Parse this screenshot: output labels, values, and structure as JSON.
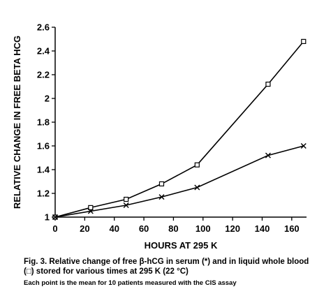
{
  "chart_data": {
    "type": "line",
    "title": "",
    "xlabel": "HOURS AT 295 K",
    "ylabel": "RELATIVE CHANGE IN FREE BETA HCG",
    "xlim": [
      0,
      170
    ],
    "ylim": [
      1,
      2.6
    ],
    "xticks": [
      "0",
      "20",
      "40",
      "60",
      "80",
      "100",
      "120",
      "140",
      "160"
    ],
    "yticks": [
      "1",
      "1.2",
      "1.4",
      "1.6",
      "1.8",
      "2",
      "2.2",
      "2.4",
      "2.6"
    ],
    "grid": false,
    "legend": "none",
    "series": [
      {
        "marker": "square",
        "x": [
          0,
          24,
          48,
          72,
          96,
          144,
          168
        ],
        "y": [
          1.0,
          1.08,
          1.15,
          1.28,
          1.44,
          2.12,
          2.48
        ]
      },
      {
        "marker": "cross",
        "x": [
          0,
          24,
          48,
          72,
          96,
          144,
          168
        ],
        "y": [
          1.0,
          1.05,
          1.1,
          1.17,
          1.25,
          1.52,
          1.6
        ]
      }
    ]
  },
  "caption": {
    "main": "Fig. 3. Relative change of free β-hCG in serum (*) and in liquid whole blood (□) stored for various times at 295 K (22 °C)",
    "sub": "Each point is the mean for 10 patients measured with the CIS assay"
  }
}
